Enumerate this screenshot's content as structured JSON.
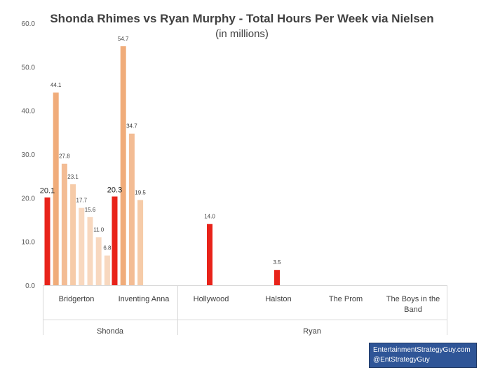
{
  "chart_data": {
    "type": "bar",
    "title": "Shonda Rhimes vs Ryan Murphy - Total Hours Per Week via Nielsen",
    "subtitle": "(in millions)",
    "ylim": [
      0,
      60
    ],
    "yticks": [
      "0.0",
      "10.0",
      "20.0",
      "30.0",
      "40.0",
      "50.0",
      "60.0"
    ],
    "grid": false,
    "groups": [
      {
        "name": "Shonda",
        "categories": [
          "Bridgerton",
          "Inventing Anna"
        ]
      },
      {
        "name": "Ryan",
        "categories": [
          "Hollywood",
          "Halston",
          "The Prom",
          "The Boys in the Band"
        ]
      }
    ],
    "series": [
      {
        "category": "Bridgerton",
        "values": [
          20.1,
          44.1,
          27.8,
          23.1,
          17.7,
          15.6,
          11.0,
          6.8
        ],
        "labels": [
          "20.1",
          "44.1",
          "27.8",
          "23.1",
          "17.7",
          "15.6",
          "11.0",
          "6.8"
        ]
      },
      {
        "category": "Inventing Anna",
        "values": [
          20.3,
          54.7,
          34.7,
          19.5
        ],
        "labels": [
          "20.3",
          "54.7",
          "34.7",
          "19.5"
        ]
      },
      {
        "category": "Hollywood",
        "values": [
          14.0
        ],
        "labels": [
          "14.0"
        ]
      },
      {
        "category": "Halston",
        "values": [
          3.5
        ],
        "labels": [
          "3.5"
        ]
      },
      {
        "category": "The Prom",
        "values": [],
        "labels": []
      },
      {
        "category": "The Boys in the Band",
        "values": [],
        "labels": []
      }
    ],
    "colors": {
      "first_week": "#e8231a",
      "second_week": "#f0ac7a",
      "third_week": "#f3bc94",
      "fourth_week": "#f6cba8",
      "later_weeks": "#f8d8bf",
      "axis": "#d9d9d9"
    }
  },
  "credit": {
    "line1": "EntertainmentStrategyGuy.com",
    "line2": "@EntStrategyGuy"
  }
}
